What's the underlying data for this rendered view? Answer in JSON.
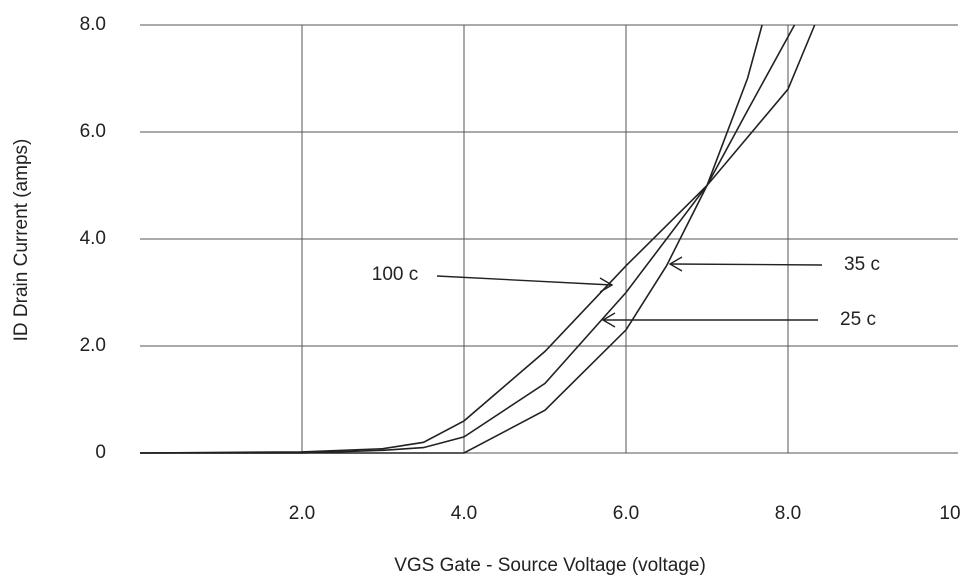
{
  "chart_data": {
    "type": "line",
    "x_label": "VGS  Gate - Source Voltage (voltage)",
    "y_label": "ID Drain Current (amps)",
    "xlim": [
      0,
      10
    ],
    "ylim": [
      0,
      8
    ],
    "xticks": [
      {
        "value": 2,
        "label": "2.0"
      },
      {
        "value": 4,
        "label": "4.0"
      },
      {
        "value": 6,
        "label": "6.0"
      },
      {
        "value": 8,
        "label": "8.0"
      },
      10
    ],
    "yticks": [
      0,
      {
        "value": 2,
        "label": "2.0"
      },
      {
        "value": 4,
        "label": "4.0"
      },
      {
        "value": 6,
        "label": "6.0"
      },
      {
        "value": 8,
        "label": "8.0"
      }
    ],
    "grid": true,
    "series": [
      {
        "name": "100 c",
        "color": "#222222",
        "x": [
          0,
          2,
          3,
          3.5,
          4,
          5,
          6,
          7,
          8,
          8.33
        ],
        "values": [
          0,
          0.02,
          0.08,
          0.2,
          0.6,
          1.9,
          3.5,
          5.0,
          6.8,
          8
        ]
      },
      {
        "name": "25 c",
        "color": "#222222",
        "x": [
          0,
          2,
          3,
          3.5,
          4,
          5,
          6,
          7,
          7.5,
          8.08
        ],
        "values": [
          0,
          0,
          0.05,
          0.1,
          0.3,
          1.3,
          3.0,
          5.0,
          6.4,
          8
        ]
      },
      {
        "name": "35 c",
        "color": "#222222",
        "x": [
          0,
          4,
          5,
          6,
          6.5,
          7,
          7.5,
          7.68
        ],
        "values": [
          0,
          0,
          0.8,
          2.3,
          3.5,
          5.0,
          7.0,
          8
        ]
      }
    ]
  }
}
